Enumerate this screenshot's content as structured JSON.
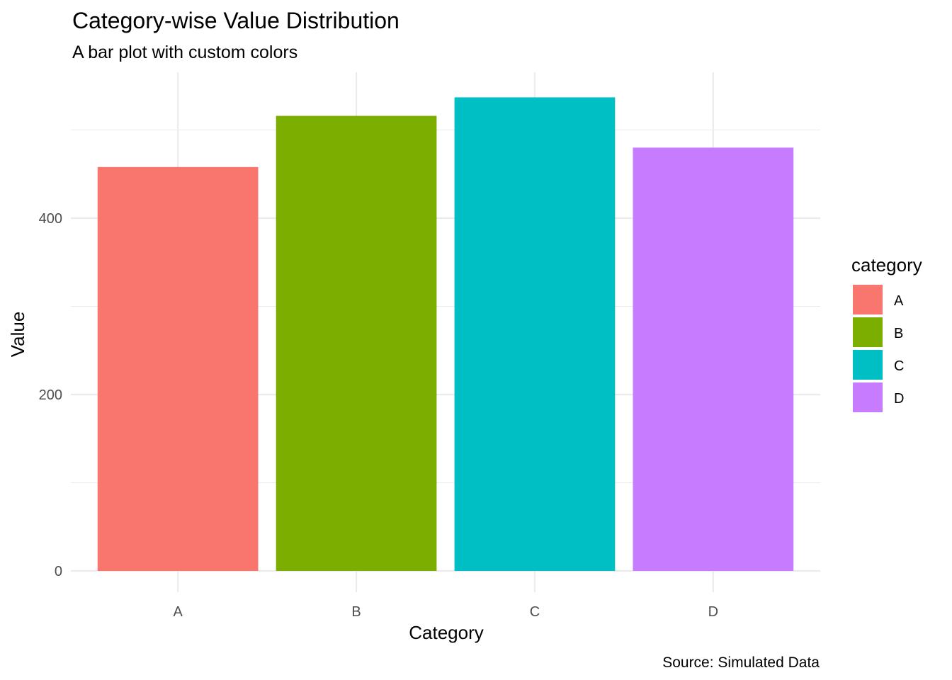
{
  "chart_data": {
    "type": "bar",
    "title": "Category-wise Value Distribution",
    "subtitle": "A bar plot with custom colors",
    "caption": "Source: Simulated Data",
    "xlabel": "Category",
    "ylabel": "Value",
    "categories": [
      "A",
      "B",
      "C",
      "D"
    ],
    "values": [
      458,
      516,
      537,
      480
    ],
    "colors": [
      "#F8766D",
      "#7CAE00",
      "#00BFC4",
      "#C77CFF"
    ],
    "ylim": [
      0,
      560
    ],
    "yticks": [
      0,
      200,
      400
    ],
    "ytick_labels": [
      "0",
      "200",
      "400"
    ],
    "grid": true,
    "legend": {
      "title": "category",
      "position": "right",
      "entries": [
        "A",
        "B",
        "C",
        "D"
      ]
    }
  }
}
